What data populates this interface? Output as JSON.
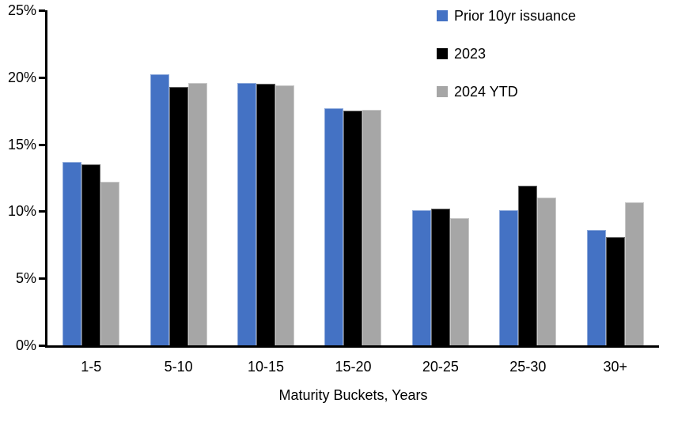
{
  "chart_data": {
    "type": "bar",
    "title": "",
    "xlabel": "Maturity Buckets, Years",
    "ylabel": "",
    "ylim": [
      0,
      25
    ],
    "yticks": [
      {
        "value": 0,
        "label": "0%"
      },
      {
        "value": 5,
        "label": "5%"
      },
      {
        "value": 10,
        "label": "10%"
      },
      {
        "value": 15,
        "label": "15%"
      },
      {
        "value": 20,
        "label": "20%"
      },
      {
        "value": 25,
        "label": "25%"
      }
    ],
    "categories": [
      "1-5",
      "5-10",
      "10-15",
      "15-20",
      "20-25",
      "25-30",
      "30+"
    ],
    "series": [
      {
        "name": "Prior 10yr issuance",
        "color": "#4472C4",
        "values": [
          13.7,
          20.2,
          19.6,
          17.7,
          10.1,
          10.1,
          8.6
        ]
      },
      {
        "name": "2023",
        "color": "#000000",
        "values": [
          13.5,
          19.3,
          19.5,
          17.5,
          10.2,
          11.9,
          8.1
        ]
      },
      {
        "name": "2024 YTD",
        "color": "#A6A6A6",
        "values": [
          12.2,
          19.6,
          19.4,
          17.6,
          9.5,
          11.0,
          10.7
        ]
      }
    ],
    "legend_position": "top-right",
    "grid": false,
    "background_color": "#FFFFFF",
    "axis_color": "#000000"
  }
}
